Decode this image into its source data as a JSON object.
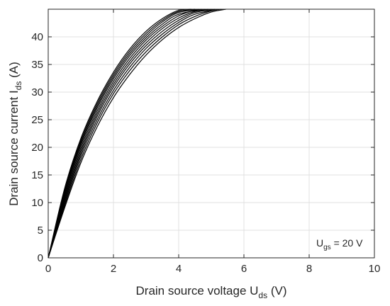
{
  "chart_data": {
    "type": "line",
    "title": "",
    "xlabel": {
      "main": "Drain source voltage U",
      "sub": "ds",
      "unit": " (V)"
    },
    "ylabel": {
      "main": "Drain source current I",
      "sub": "ds",
      "unit": " (A)"
    },
    "xlim": [
      0,
      10
    ],
    "ylim": [
      0,
      45
    ],
    "xticks": [
      0,
      2,
      4,
      6,
      8,
      10
    ],
    "yticks": [
      0,
      5,
      10,
      15,
      20,
      25,
      30,
      35,
      40
    ],
    "grid": true,
    "annotation": {
      "main": "U",
      "sub": "gs",
      "rest": " = 20 V"
    },
    "line_color": "#000000",
    "series": [
      {
        "x": [
          0,
          0.5,
          1,
          1.5,
          2,
          2.5,
          3,
          3.5,
          4,
          4.5
        ],
        "y": [
          0,
          12.5,
          21.6,
          28.3,
          33.6,
          37.8,
          41.0,
          43.3,
          44.8,
          45.0
        ]
      },
      {
        "x": [
          0,
          0.5,
          1,
          1.5,
          2,
          2.5,
          3,
          3.5,
          4,
          4.6
        ],
        "y": [
          0,
          12.1,
          21.2,
          27.9,
          33.2,
          37.4,
          40.6,
          43.0,
          44.6,
          45.0
        ]
      },
      {
        "x": [
          0,
          0.5,
          1,
          1.5,
          2,
          2.5,
          3,
          3.5,
          4,
          4.7
        ],
        "y": [
          0,
          11.8,
          20.8,
          27.5,
          32.8,
          37.0,
          40.2,
          42.7,
          44.4,
          45.0
        ]
      },
      {
        "x": [
          0,
          0.5,
          1,
          1.5,
          2,
          2.5,
          3,
          3.5,
          4,
          4.8
        ],
        "y": [
          0,
          11.4,
          20.4,
          27.1,
          32.4,
          36.6,
          39.8,
          42.3,
          44.1,
          45.0
        ]
      },
      {
        "x": [
          0,
          0.5,
          1,
          1.5,
          2,
          2.5,
          3,
          3.5,
          4,
          4.5,
          4.9
        ],
        "y": [
          0,
          11.0,
          19.9,
          26.6,
          31.9,
          36.1,
          39.4,
          41.9,
          43.8,
          44.8,
          45.0
        ]
      },
      {
        "x": [
          0,
          0.5,
          1,
          1.5,
          2,
          2.5,
          3,
          3.5,
          4,
          4.5,
          5.0
        ],
        "y": [
          0,
          10.6,
          19.4,
          26.1,
          31.4,
          35.6,
          38.9,
          41.5,
          43.4,
          44.6,
          45.0
        ]
      },
      {
        "x": [
          0,
          0.5,
          1,
          1.5,
          2,
          2.5,
          3,
          3.5,
          4,
          4.5,
          5.1
        ],
        "y": [
          0,
          10.2,
          18.9,
          25.6,
          30.9,
          35.1,
          38.4,
          41.0,
          43.0,
          44.4,
          45.0
        ]
      },
      {
        "x": [
          0,
          0.5,
          1,
          1.5,
          2,
          2.5,
          3,
          3.5,
          4,
          4.5,
          5.2
        ],
        "y": [
          0,
          9.8,
          18.4,
          25.0,
          30.3,
          34.5,
          37.9,
          40.5,
          42.6,
          44.1,
          45.0
        ]
      },
      {
        "x": [
          0,
          0.5,
          1,
          1.5,
          2,
          2.5,
          3,
          3.5,
          4,
          4.5,
          5,
          5.3
        ],
        "y": [
          0,
          9.4,
          17.8,
          24.4,
          29.7,
          33.9,
          37.3,
          40.0,
          42.2,
          43.7,
          44.7,
          45.0
        ]
      },
      {
        "x": [
          0,
          0.5,
          1,
          1.5,
          2,
          2.5,
          3,
          3.5,
          4,
          4.5,
          5,
          5.45
        ],
        "y": [
          0,
          9.0,
          17.2,
          23.7,
          29.0,
          33.2,
          36.7,
          39.5,
          41.7,
          43.3,
          44.5,
          45.0
        ]
      }
    ]
  }
}
